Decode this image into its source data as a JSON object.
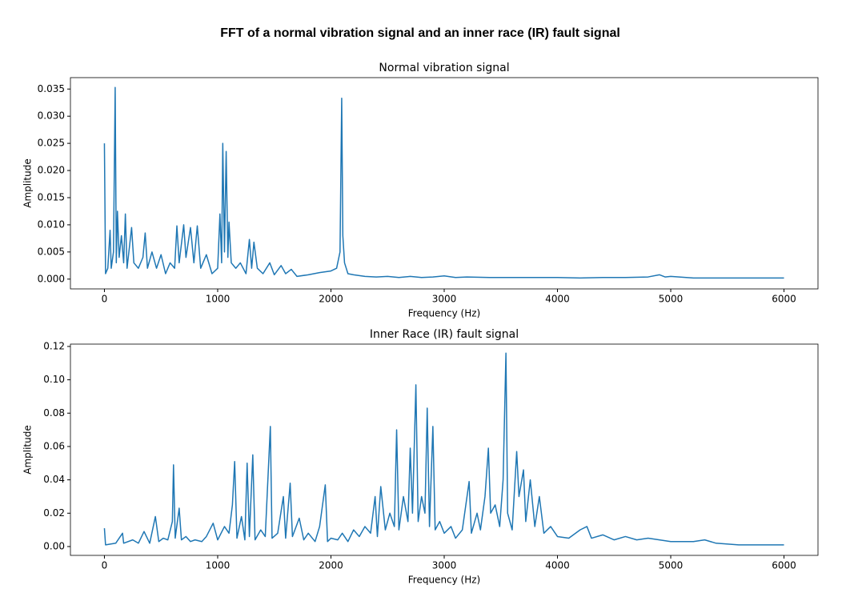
{
  "title": "FFT of a normal vibration signal and an inner race (IR) fault signal",
  "chart_data": [
    {
      "type": "line",
      "title": "Normal vibration signal",
      "xlabel": "Frequency (Hz)",
      "ylabel": "Amplitude",
      "color": "#1f77b4",
      "xlim": [
        -300,
        6300
      ],
      "ylim": [
        -0.0018,
        0.0371
      ],
      "xticks": [
        0,
        1000,
        2000,
        3000,
        4000,
        5000,
        6000
      ],
      "yticks": [
        {
          "value": 0,
          "label": "0.000"
        },
        {
          "value": 0.005,
          "label": "0.005"
        },
        {
          "value": 0.01,
          "label": "0.010"
        },
        {
          "value": 0.015,
          "label": "0.015"
        },
        {
          "value": 0.02,
          "label": "0.020"
        },
        {
          "value": 0.025,
          "label": "0.025"
        },
        {
          "value": 0.03,
          "label": "0.030"
        },
        {
          "value": 0.035,
          "label": "0.035"
        }
      ],
      "grid": false,
      "x": [
        0,
        10,
        30,
        50,
        60,
        80,
        95,
        105,
        115,
        130,
        150,
        170,
        185,
        200,
        240,
        260,
        300,
        340,
        360,
        380,
        420,
        460,
        500,
        540,
        580,
        620,
        640,
        660,
        700,
        720,
        760,
        790,
        820,
        850,
        900,
        950,
        1000,
        1020,
        1035,
        1045,
        1060,
        1075,
        1090,
        1100,
        1120,
        1160,
        1200,
        1250,
        1280,
        1300,
        1320,
        1350,
        1400,
        1460,
        1500,
        1560,
        1600,
        1650,
        1700,
        1800,
        1900,
        2000,
        2050,
        2080,
        2095,
        2105,
        2120,
        2150,
        2200,
        2300,
        2400,
        2500,
        2600,
        2700,
        2800,
        2900,
        3000,
        3100,
        3200,
        3400,
        3600,
        3800,
        4000,
        4200,
        4400,
        4600,
        4800,
        4900,
        4950,
        5000,
        5200,
        5400,
        5600,
        5800,
        6000
      ],
      "values": [
        0.025,
        0.001,
        0.002,
        0.009,
        0.002,
        0.005,
        0.0353,
        0.003,
        0.0125,
        0.004,
        0.008,
        0.003,
        0.012,
        0.002,
        0.0095,
        0.003,
        0.002,
        0.004,
        0.0085,
        0.002,
        0.005,
        0.002,
        0.0045,
        0.001,
        0.003,
        0.002,
        0.0098,
        0.003,
        0.01,
        0.004,
        0.0095,
        0.003,
        0.0098,
        0.002,
        0.0045,
        0.001,
        0.002,
        0.012,
        0.003,
        0.025,
        0.005,
        0.0235,
        0.004,
        0.0105,
        0.003,
        0.002,
        0.003,
        0.001,
        0.0073,
        0.002,
        0.0068,
        0.002,
        0.001,
        0.003,
        0.0008,
        0.0025,
        0.001,
        0.0018,
        0.0005,
        0.0008,
        0.0012,
        0.0015,
        0.002,
        0.005,
        0.0333,
        0.008,
        0.003,
        0.001,
        0.0008,
        0.0005,
        0.0004,
        0.0005,
        0.0003,
        0.0005,
        0.0003,
        0.0004,
        0.0006,
        0.0003,
        0.0004,
        0.0003,
        0.0003,
        0.0003,
        0.0003,
        0.0002,
        0.0003,
        0.0003,
        0.0004,
        0.0008,
        0.0004,
        0.0005,
        0.0002,
        0.0002,
        0.0002,
        0.0002,
        0.0002
      ]
    },
    {
      "type": "line",
      "title": "Inner Race (IR) fault signal",
      "xlabel": "Frequency (Hz)",
      "ylabel": "Amplitude",
      "color": "#1f77b4",
      "xlim": [
        -300,
        6300
      ],
      "ylim": [
        -0.0053,
        0.1214
      ],
      "xticks": [
        0,
        1000,
        2000,
        3000,
        4000,
        5000,
        6000
      ],
      "yticks": [
        {
          "value": 0,
          "label": "0.00"
        },
        {
          "value": 0.02,
          "label": "0.02"
        },
        {
          "value": 0.04,
          "label": "0.04"
        },
        {
          "value": 0.06,
          "label": "0.06"
        },
        {
          "value": 0.08,
          "label": "0.08"
        },
        {
          "value": 0.1,
          "label": "0.10"
        },
        {
          "value": 0.12,
          "label": "0.12"
        }
      ],
      "grid": false,
      "x": [
        0,
        10,
        100,
        160,
        170,
        250,
        300,
        350,
        400,
        450,
        480,
        520,
        560,
        600,
        610,
        625,
        660,
        680,
        720,
        760,
        800,
        860,
        900,
        960,
        1000,
        1060,
        1100,
        1130,
        1150,
        1170,
        1210,
        1240,
        1260,
        1280,
        1310,
        1330,
        1380,
        1420,
        1465,
        1480,
        1530,
        1580,
        1600,
        1640,
        1660,
        1720,
        1760,
        1800,
        1860,
        1900,
        1950,
        1970,
        2000,
        2060,
        2100,
        2150,
        2200,
        2250,
        2300,
        2350,
        2390,
        2410,
        2440,
        2480,
        2520,
        2560,
        2580,
        2600,
        2640,
        2680,
        2700,
        2720,
        2750,
        2770,
        2800,
        2830,
        2850,
        2870,
        2900,
        2920,
        2960,
        3000,
        3060,
        3100,
        3160,
        3220,
        3240,
        3290,
        3320,
        3360,
        3390,
        3410,
        3450,
        3490,
        3520,
        3545,
        3560,
        3600,
        3640,
        3660,
        3700,
        3720,
        3760,
        3800,
        3840,
        3880,
        3940,
        4000,
        4100,
        4200,
        4260,
        4300,
        4400,
        4500,
        4600,
        4700,
        4800,
        5000,
        5200,
        5300,
        5400,
        5600,
        5800,
        6000
      ],
      "values": [
        0.011,
        0.001,
        0.002,
        0.008,
        0.002,
        0.004,
        0.002,
        0.009,
        0.002,
        0.018,
        0.003,
        0.005,
        0.004,
        0.015,
        0.049,
        0.005,
        0.023,
        0.004,
        0.006,
        0.003,
        0.004,
        0.003,
        0.006,
        0.014,
        0.004,
        0.012,
        0.008,
        0.025,
        0.051,
        0.005,
        0.018,
        0.004,
        0.05,
        0.006,
        0.055,
        0.004,
        0.01,
        0.006,
        0.072,
        0.005,
        0.008,
        0.03,
        0.005,
        0.038,
        0.006,
        0.017,
        0.004,
        0.008,
        0.003,
        0.012,
        0.037,
        0.003,
        0.005,
        0.004,
        0.008,
        0.003,
        0.01,
        0.006,
        0.012,
        0.008,
        0.03,
        0.006,
        0.036,
        0.01,
        0.02,
        0.012,
        0.07,
        0.01,
        0.03,
        0.015,
        0.059,
        0.02,
        0.097,
        0.015,
        0.03,
        0.02,
        0.083,
        0.012,
        0.072,
        0.01,
        0.015,
        0.008,
        0.012,
        0.005,
        0.01,
        0.039,
        0.008,
        0.02,
        0.01,
        0.03,
        0.059,
        0.02,
        0.025,
        0.012,
        0.04,
        0.116,
        0.02,
        0.01,
        0.057,
        0.03,
        0.046,
        0.015,
        0.04,
        0.012,
        0.03,
        0.008,
        0.012,
        0.006,
        0.005,
        0.01,
        0.012,
        0.005,
        0.007,
        0.004,
        0.006,
        0.004,
        0.005,
        0.003,
        0.003,
        0.004,
        0.002,
        0.001,
        0.001,
        0.001
      ]
    }
  ]
}
